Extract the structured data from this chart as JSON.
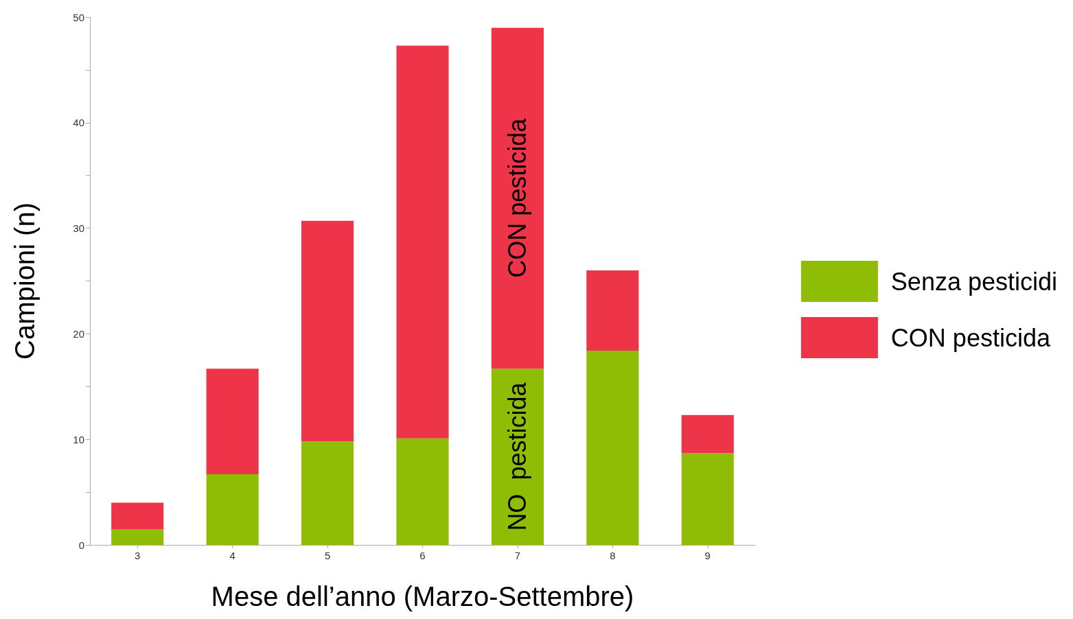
{
  "chart_data": {
    "type": "bar",
    "stacked": true,
    "xlabel": "Mese dell’anno (Marzo-Settembre)",
    "ylabel": "Campioni (n)",
    "categories": [
      "3",
      "4",
      "5",
      "6",
      "7",
      "8",
      "9"
    ],
    "series": [
      {
        "name": "Senza pesticidi",
        "color": "#8fbc04",
        "values": [
          1.5,
          6.7,
          9.8,
          10.1,
          16.7,
          18.4,
          8.7
        ]
      },
      {
        "name": "CON pesticida",
        "color": "#ee3448",
        "values": [
          2.5,
          10,
          20.9,
          37.2,
          32.3,
          7.6,
          3.6
        ]
      }
    ],
    "ylim": [
      0,
      50
    ],
    "yticks": [
      0,
      {
        "value": 5,
        "label": null
      },
      10,
      {
        "value": 15,
        "label": null
      },
      20,
      {
        "value": 25,
        "label": null
      },
      30,
      {
        "value": 35,
        "label": null
      },
      40,
      {
        "value": 45,
        "label": null
      },
      50
    ],
    "grid": false,
    "legend": "right",
    "annotations": [
      "CON pesticida",
      "NO  pesticida"
    ]
  }
}
